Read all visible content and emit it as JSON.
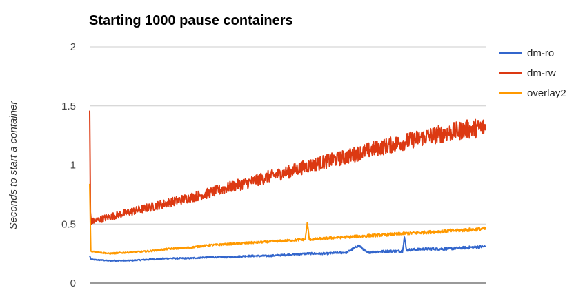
{
  "chart_data": {
    "type": "line",
    "title": "Starting 1000 pause containers",
    "xlabel": "",
    "ylabel": "Seconds to start a container",
    "x": {
      "min": 1,
      "max": 1000
    },
    "ylim": [
      0,
      2
    ],
    "yticks": [
      "0",
      "0.5",
      "1",
      "1.5",
      "2"
    ],
    "grid": true,
    "legend_position": "right",
    "series": [
      {
        "name": "dm-ro",
        "color": "#3366cc",
        "points": [
          [
            1,
            0.23
          ],
          [
            5,
            0.2
          ],
          [
            50,
            0.19
          ],
          [
            100,
            0.19
          ],
          [
            150,
            0.2
          ],
          [
            200,
            0.21
          ],
          [
            250,
            0.21
          ],
          [
            300,
            0.22
          ],
          [
            350,
            0.22
          ],
          [
            400,
            0.23
          ],
          [
            450,
            0.23
          ],
          [
            500,
            0.24
          ],
          [
            550,
            0.25
          ],
          [
            600,
            0.25
          ],
          [
            650,
            0.26
          ],
          [
            680,
            0.32
          ],
          [
            700,
            0.26
          ],
          [
            750,
            0.27
          ],
          [
            790,
            0.27
          ],
          [
            795,
            0.39
          ],
          [
            800,
            0.28
          ],
          [
            850,
            0.29
          ],
          [
            900,
            0.29
          ],
          [
            950,
            0.3
          ],
          [
            1000,
            0.31
          ]
        ]
      },
      {
        "name": "dm-rw",
        "color": "#dc3912",
        "points": [
          [
            1,
            1.46
          ],
          [
            3,
            0.6
          ],
          [
            5,
            0.52
          ],
          [
            50,
            0.56
          ],
          [
            100,
            0.6
          ],
          [
            150,
            0.64
          ],
          [
            200,
            0.68
          ],
          [
            250,
            0.72
          ],
          [
            300,
            0.76
          ],
          [
            350,
            0.81
          ],
          [
            400,
            0.85
          ],
          [
            450,
            0.9
          ],
          [
            500,
            0.94
          ],
          [
            550,
            0.99
          ],
          [
            600,
            1.03
          ],
          [
            650,
            1.07
          ],
          [
            700,
            1.12
          ],
          [
            750,
            1.16
          ],
          [
            800,
            1.2
          ],
          [
            850,
            1.24
          ],
          [
            900,
            1.27
          ],
          [
            950,
            1.3
          ],
          [
            1000,
            1.32
          ]
        ]
      },
      {
        "name": "overlay2",
        "color": "#ff9900",
        "points": [
          [
            1,
            0.84
          ],
          [
            4,
            0.27
          ],
          [
            50,
            0.25
          ],
          [
            100,
            0.26
          ],
          [
            150,
            0.27
          ],
          [
            200,
            0.29
          ],
          [
            250,
            0.3
          ],
          [
            300,
            0.32
          ],
          [
            350,
            0.33
          ],
          [
            400,
            0.34
          ],
          [
            450,
            0.35
          ],
          [
            500,
            0.36
          ],
          [
            545,
            0.37
          ],
          [
            550,
            0.51
          ],
          [
            555,
            0.37
          ],
          [
            600,
            0.38
          ],
          [
            650,
            0.39
          ],
          [
            700,
            0.4
          ],
          [
            750,
            0.41
          ],
          [
            800,
            0.42
          ],
          [
            850,
            0.43
          ],
          [
            900,
            0.44
          ],
          [
            950,
            0.45
          ],
          [
            1000,
            0.46
          ]
        ]
      }
    ]
  }
}
